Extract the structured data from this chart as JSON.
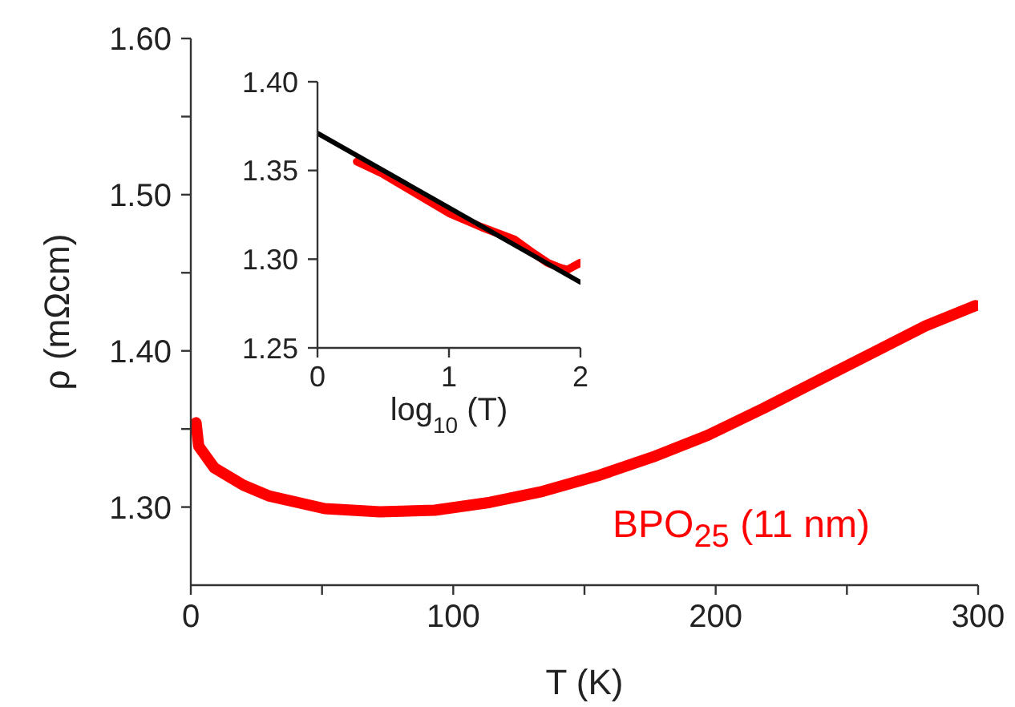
{
  "chart_data": [
    {
      "type": "line",
      "xlabel": "T (K)",
      "ylabel": "ρ (mΩcm)",
      "xlim": [
        0,
        300
      ],
      "ylim": [
        1.25,
        1.6
      ],
      "xticks": [
        0,
        {
          "value": 50,
          "label": null
        },
        100,
        {
          "value": 150,
          "label": null
        },
        200,
        {
          "value": 250,
          "label": null
        },
        300
      ],
      "yticks": [
        {
          "value": 1.3,
          "label": "1.30"
        },
        {
          "value": 1.35,
          "label": null
        },
        {
          "value": 1.4,
          "label": "1.40"
        },
        {
          "value": 1.45,
          "label": null
        },
        {
          "value": 1.5,
          "label": "1.50"
        },
        {
          "value": 1.55,
          "label": null
        },
        {
          "value": 1.6,
          "label": "1.60"
        }
      ],
      "series": [
        {
          "name": "BPO$_{25}$ (11 nm)",
          "color": "#ff0000",
          "x": [
            2,
            3,
            9,
            20,
            30,
            51,
            72,
            93,
            114,
            134,
            155,
            176,
            197,
            218,
            239,
            259,
            280,
            299
          ],
          "values": [
            1.354,
            1.339,
            1.325,
            1.314,
            1.307,
            1.299,
            1.297,
            1.298,
            1.303,
            1.31,
            1.32,
            1.332,
            1.346,
            1.363,
            1.381,
            1.398,
            1.416,
            1.429
          ]
        }
      ]
    },
    {
      "type": "line",
      "xlabel": "log$_{10}$ (T)",
      "xlim": [
        0,
        2
      ],
      "ylim": [
        1.25,
        1.4
      ],
      "xticks": [
        0,
        1,
        2
      ],
      "yticks": [
        {
          "value": 1.25,
          "label": "1.25"
        },
        {
          "value": 1.3,
          "label": "1.30"
        },
        {
          "value": 1.35,
          "label": "1.35"
        },
        {
          "value": 1.4,
          "label": "1.40"
        }
      ],
      "series": [
        {
          "color": "#ff0000",
          "x": [
            0.3,
            0.5,
            0.75,
            1,
            1.25,
            1.5,
            1.65,
            1.75,
            1.85,
            1.9,
            1.95,
            2
          ],
          "values": [
            1.355,
            1.348,
            1.337,
            1.326,
            1.318,
            1.311,
            1.303,
            1.298,
            1.295,
            1.294,
            1.296,
            1.298
          ]
        },
        {
          "color": "#000000",
          "x": [
            0,
            2
          ],
          "values": [
            1.371,
            1.287
          ]
        }
      ]
    }
  ]
}
